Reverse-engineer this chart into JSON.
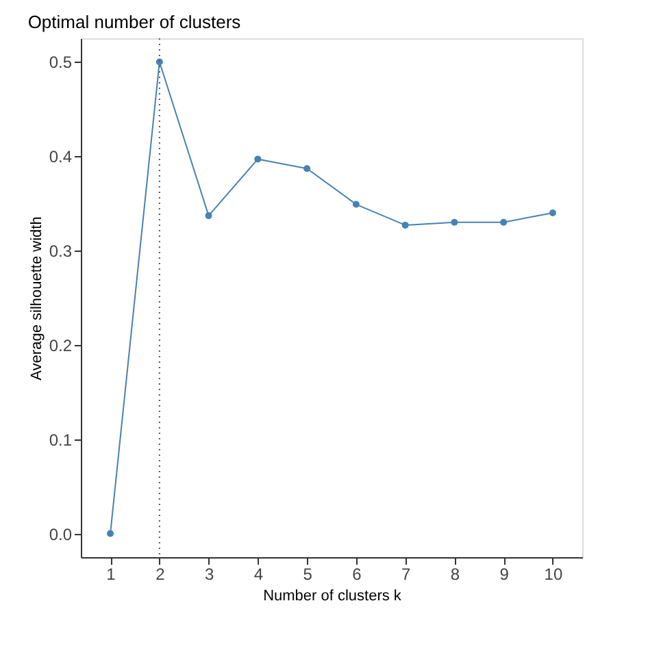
{
  "chart_data": {
    "type": "line",
    "title": "Optimal number of clusters",
    "xlabel": "Number of clusters k",
    "ylabel": "Average silhouette width",
    "x": [
      1,
      2,
      3,
      4,
      5,
      6,
      7,
      8,
      9,
      10
    ],
    "series": [
      {
        "color": "#4682b4",
        "values": [
          0.0,
          0.5,
          0.337,
          0.397,
          0.387,
          0.349,
          0.327,
          0.33,
          0.33,
          0.34
        ]
      }
    ],
    "xlim": [
      0.4,
      10.6
    ],
    "xticks": [
      1,
      2,
      3,
      4,
      5,
      6,
      7,
      8,
      9,
      10
    ],
    "ylim": [
      -0.025,
      0.525
    ],
    "yticks": [
      {
        "value": 0,
        "label": "0.0"
      },
      0.1,
      0.2,
      0.3,
      0.4,
      0.5
    ],
    "ref_lines": [
      {
        "axis": "x",
        "value": 2,
        "color": "#555555",
        "line_style": "dotted"
      }
    ],
    "marker": "circle",
    "line_style": "solid",
    "grid": false
  }
}
